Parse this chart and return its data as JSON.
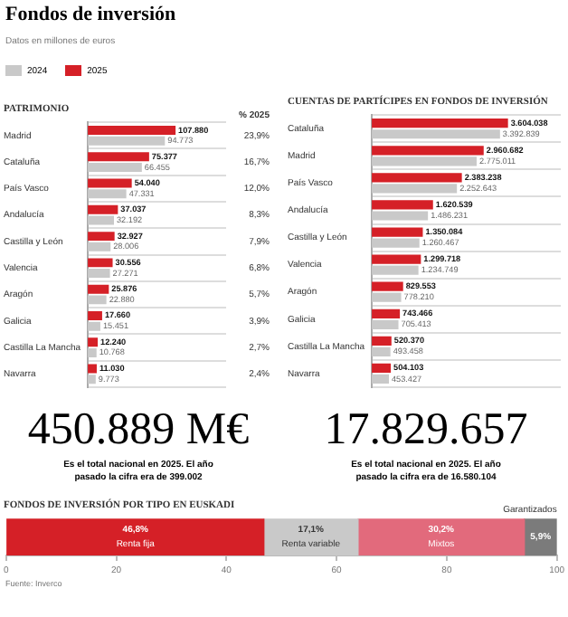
{
  "chart_data": [
    {
      "type": "other",
      "title": "Fondos de inversión",
      "subtitle": "Datos en millones de euros"
    },
    {
      "type": "bar",
      "orientation": "horizontal",
      "title": "PATRIMONIO",
      "categories": [
        "Madrid",
        "Cataluña",
        "País Vasco",
        "Andalucía",
        "Castilla y León",
        "Valencia",
        "Aragón",
        "Galicia",
        "Castilla La Mancha",
        "Navarra"
      ],
      "series": [
        {
          "name": "2024",
          "color": "#c9c9c9",
          "values": [
            94773,
            66455,
            47331,
            32192,
            28006,
            27271,
            22880,
            15451,
            10768,
            9773
          ],
          "value_labels": [
            "94.773",
            "66.455",
            "47.331",
            "32.192",
            "28.006",
            "27.271",
            "22.880",
            "15.451",
            "10.768",
            "9.773"
          ]
        },
        {
          "name": "2025",
          "color": "#d52027",
          "values": [
            107880,
            75377,
            54040,
            37037,
            32927,
            30556,
            25876,
            17660,
            12240,
            11030
          ],
          "value_labels": [
            "107.880",
            "75.377",
            "54.040",
            "37.037",
            "32.927",
            "30.556",
            "25.876",
            "17.660",
            "12.240",
            "11.030"
          ]
        }
      ],
      "xlim": [
        0,
        170000
      ],
      "tick_labels": "y",
      "grid": "y",
      "legend": "top left",
      "annotations": [
        "% 2025",
        "23,9%",
        "16,7%",
        "12,0%",
        "8,3%",
        "7,9%",
        "6,8%",
        "5,7%",
        "3,9%",
        "2,7%",
        "2,4%",
        "450.889 M€",
        "Es el total nacional en 2025. El año pasado la cifra era de 399.002"
      ]
    },
    {
      "type": "bar",
      "orientation": "horizontal",
      "title": "CUENTAS DE PARTÍCIPES EN FONDOS DE INVERSIÓN",
      "categories": [
        "Cataluña",
        "Madrid",
        "País Vasco",
        "Andalucía",
        "Castilla y León",
        "Valencia",
        "Aragón",
        "Galicia",
        "Castilla La Mancha",
        "Navarra"
      ],
      "series": [
        {
          "color": "#c9c9c9",
          "values": [
            3392839,
            2775011,
            2252643,
            1486231,
            1260467,
            1234749,
            778210,
            705413,
            493458,
            453427
          ],
          "value_labels": [
            "3.392.839",
            "2.775.011",
            "2.252.643",
            "1.486.231",
            "1.260.467",
            "1.234.749",
            "778.210",
            "705.413",
            "493.458",
            "453.427"
          ]
        },
        {
          "color": "#d52027",
          "values": [
            3604038,
            2960682,
            2383238,
            1620539,
            1350084,
            1299718,
            829553,
            743466,
            520370,
            504103
          ],
          "value_labels": [
            "3.604.038",
            "2.960.682",
            "2.383.238",
            "1.620.539",
            "1.350.084",
            "1.299.718",
            "829.553",
            "743.466",
            "520.370",
            "504.103"
          ]
        }
      ],
      "xlim": [
        0,
        5000000
      ],
      "tick_labels": "y",
      "grid": "y",
      "annotations": [
        "17.829.657",
        "Es el total nacional en 2025. El año pasado la cifra era de 16.580.104"
      ]
    },
    {
      "type": "bar",
      "orientation": "horizontal",
      "stacked": true,
      "title": "FONDOS DE INVERSIÓN POR TIPO EN EUSKADI",
      "categories": [
        null
      ],
      "series": [
        {
          "name": "Renta fija",
          "color": "#d52027",
          "values": [
            46.8
          ],
          "value_labels": [
            "46,8%"
          ]
        },
        {
          "name": "Renta variable",
          "color": "#c9c9c9",
          "values": [
            17.1
          ],
          "value_labels": [
            "17,1%"
          ]
        },
        {
          "name": "Mixtos",
          "color": "#e26a7c",
          "values": [
            30.2
          ],
          "value_labels": [
            "30,2%"
          ]
        },
        {
          "name": "Garantizados",
          "color": "#7b7b7b",
          "values": [
            5.9
          ],
          "value_labels": [
            "5,9%"
          ]
        }
      ],
      "xlim": [
        0,
        100
      ],
      "xticks": [
        0,
        20,
        40,
        60,
        80,
        100
      ],
      "tick_labels": "x",
      "annotations": [
        "Fuente: Inverco"
      ]
    }
  ]
}
